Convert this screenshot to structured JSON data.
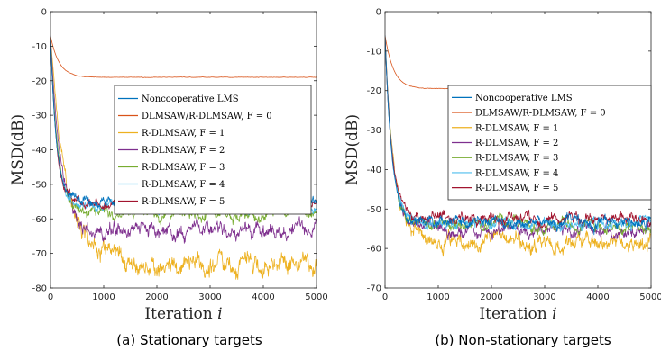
{
  "chart_data": [
    {
      "type": "line",
      "caption": "(a) Stationary targets",
      "xlabel": "Iteration",
      "xlabel_var": "i",
      "ylabel": "MSD(dB)",
      "xlim": [
        0,
        5000
      ],
      "ylim": [
        -80,
        0
      ],
      "xticks": [
        "0",
        "1000",
        "2000",
        "3000",
        "4000",
        "5000"
      ],
      "yticks": [
        "0",
        "-10",
        "-20",
        "-30",
        "-40",
        "-50",
        "-60",
        "-70",
        "-80"
      ],
      "grid": false,
      "legend_position": "center-right",
      "series": [
        {
          "name": "Noncooperative LMS",
          "color": "#0072BD",
          "start": -7,
          "steady": -54.5,
          "tau": 110,
          "noise": 1.0,
          "rise": 0,
          "rise_start": 0,
          "rise_end": 0
        },
        {
          "name": "DLMSAW/R-DLMSAW, F = 0",
          "color": "#D95319",
          "start": -7,
          "steady": -19,
          "tau": 160,
          "noise": 0.05,
          "rise": 0,
          "rise_start": 0,
          "rise_end": 0
        },
        {
          "name": "R-DLMSAW, F = 1",
          "color": "#EDB120",
          "start": -7,
          "steady": -73,
          "tau": 300,
          "noise": 2.2,
          "rise": 0,
          "rise_start": 0,
          "rise_end": 0
        },
        {
          "name": "R-DLMSAW, F = 2",
          "color": "#7E2F8E",
          "start": -7,
          "steady": -63.5,
          "tau": 190,
          "noise": 1.6,
          "rise": 0,
          "rise_start": 0,
          "rise_end": 0
        },
        {
          "name": "R-DLMSAW, F = 3",
          "color": "#77AC30",
          "start": -7,
          "steady": -58.5,
          "tau": 140,
          "noise": 1.2,
          "rise": 0,
          "rise_start": 0,
          "rise_end": 0
        },
        {
          "name": "R-DLMSAW, F = 4",
          "color": "#4DBEEE",
          "start": -7,
          "steady": -56.5,
          "tau": 120,
          "noise": 1.0,
          "rise": 0,
          "rise_start": 0,
          "rise_end": 0
        },
        {
          "name": "R-DLMSAW, F = 5",
          "color": "#A2142F",
          "start": -7,
          "steady": -55.5,
          "tau": 115,
          "noise": 1.0,
          "rise": 0,
          "rise_start": 0,
          "rise_end": 0
        }
      ]
    },
    {
      "type": "line",
      "caption": "(b) Non-stationary targets",
      "xlabel": "Iteration",
      "xlabel_var": "i",
      "ylabel": "MSD(dB)",
      "xlim": [
        0,
        5000
      ],
      "ylim": [
        -70,
        0
      ],
      "xticks": [
        "0",
        "1000",
        "2000",
        "3000",
        "4000",
        "5000"
      ],
      "yticks": [
        "0",
        "-10",
        "-20",
        "-30",
        "-40",
        "-50",
        "-60",
        "-70"
      ],
      "grid": false,
      "legend_position": "center-right",
      "series": [
        {
          "name": "Noncooperative LMS",
          "color": "#0072BD",
          "start": -6,
          "steady": -53.5,
          "tau": 130,
          "noise": 1.0,
          "rise": 0,
          "rise_start": 0,
          "rise_end": 0
        },
        {
          "name": "DLMSAW/R-DLMSAW, F = 0",
          "color": "#D95319",
          "start": -6,
          "steady": -19.5,
          "tau": 160,
          "noise": 0.05,
          "rise": 0,
          "rise_start": 0,
          "rise_end": 0
        },
        {
          "name": "R-DLMSAW, F = 1",
          "color": "#EDB120",
          "start": -6,
          "steady": -58.5,
          "tau": 170,
          "noise": 1.5,
          "rise": 0,
          "rise_start": 0,
          "rise_end": 0
        },
        {
          "name": "R-DLMSAW, F = 2",
          "color": "#7E2F8E",
          "start": -6,
          "steady": -55.5,
          "tau": 150,
          "noise": 1.1,
          "rise": 0,
          "rise_start": 0,
          "rise_end": 0
        },
        {
          "name": "R-DLMSAW, F = 3",
          "color": "#77AC30",
          "start": -6,
          "steady": -54,
          "tau": 140,
          "noise": 1.0,
          "rise": 0,
          "rise_start": 0,
          "rise_end": 0
        },
        {
          "name": "R-DLMSAW, F = 4",
          "color": "#4DBEEE",
          "start": -6,
          "steady": -53.5,
          "tau": 130,
          "noise": 1.0,
          "rise": 0,
          "rise_start": 0,
          "rise_end": 0
        },
        {
          "name": "R-DLMSAW, F = 5",
          "color": "#A2142F",
          "start": -6,
          "steady": -52.5,
          "tau": 125,
          "noise": 1.0,
          "rise": 0,
          "rise_start": 0,
          "rise_end": 0
        }
      ]
    }
  ]
}
